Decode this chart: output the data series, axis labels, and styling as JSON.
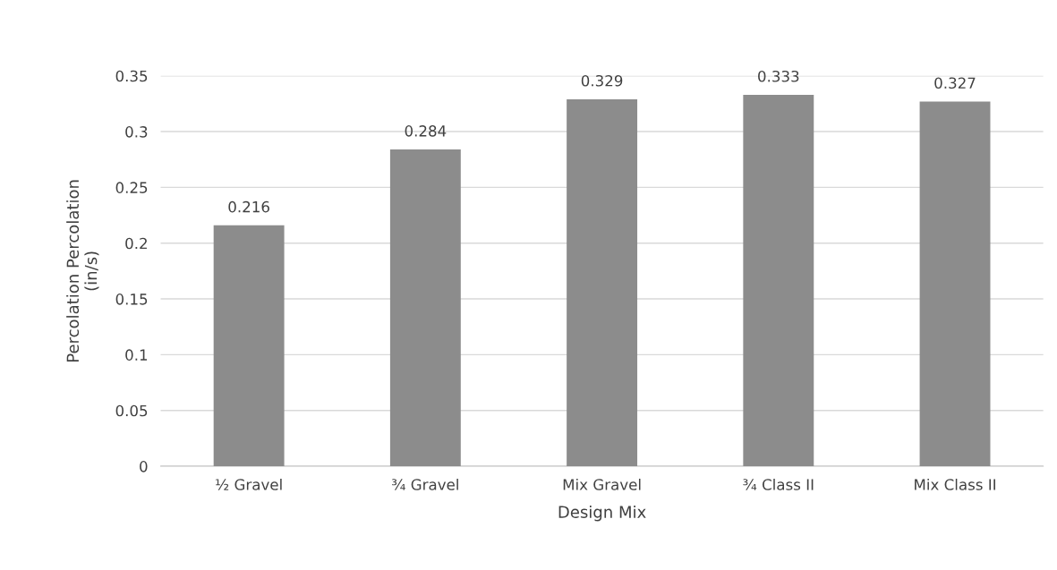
{
  "chart_data": {
    "type": "bar",
    "xlabel": "Design Mix",
    "ylabel": "Percolation Percolation\n(in/s)",
    "categories": [
      "½ Gravel",
      "¾ Gravel",
      "Mix Gravel",
      "¾ Class II",
      "Mix Class II"
    ],
    "values": [
      0.216,
      0.284,
      0.329,
      0.333,
      0.327
    ],
    "color": "#8c8c8c",
    "ylim": [
      0,
      0.35
    ],
    "yticks": [
      {
        "value": 0,
        "label": "0"
      },
      {
        "value": 0.05,
        "label": "0.05"
      },
      {
        "value": 0.1,
        "label": "0.1"
      },
      {
        "value": 0.15,
        "label": "0.15"
      },
      {
        "value": 0.2,
        "label": "0.2"
      },
      {
        "value": 0.25,
        "label": "0.25"
      },
      {
        "value": 0.3,
        "label": "0.3"
      },
      {
        "value": 0.35,
        "label": "0.35"
      }
    ],
    "grid": "y",
    "data_labels": true
  }
}
